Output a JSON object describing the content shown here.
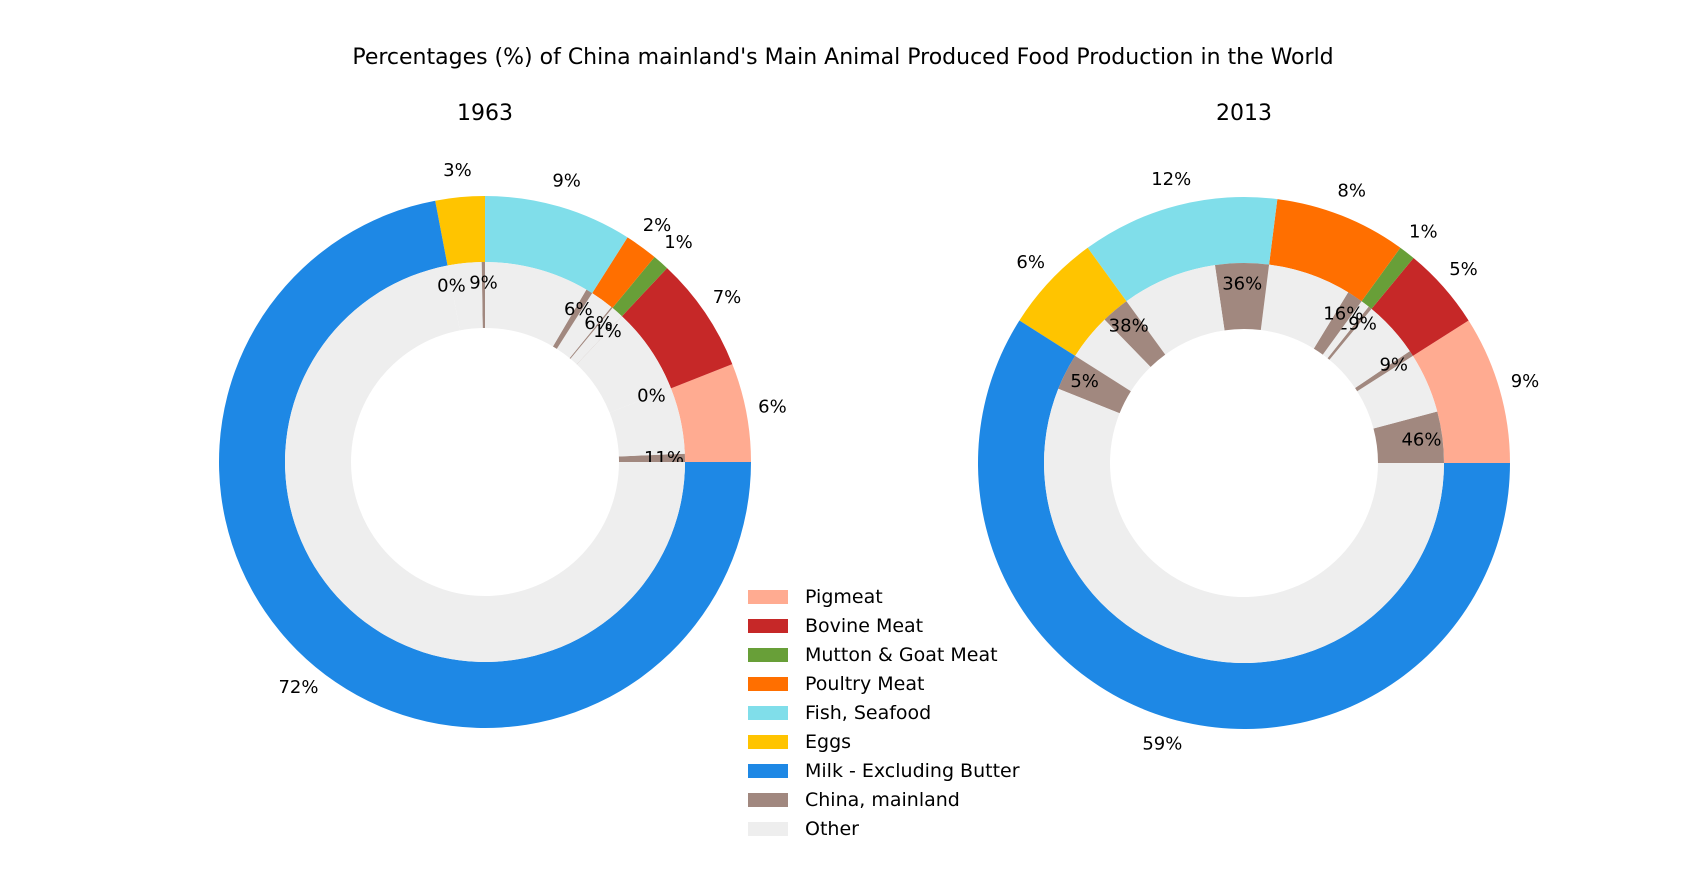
{
  "chart_data": {
    "type": "pie",
    "title": "Percentages (%) of China mainland's Main Animal Produced Food Production in the World",
    "categories": [
      "Pigmeat",
      "Bovine Meat",
      "Mutton & Goat Meat",
      "Poultry Meat",
      "Fish, Seafood",
      "Eggs",
      "Milk - Excluding Butter"
    ],
    "legend": {
      "placement": "center-bottom",
      "entries": [
        {
          "label": "Pigmeat",
          "color": "#FFAB91"
        },
        {
          "label": "Bovine Meat",
          "color": "#C62828"
        },
        {
          "label": "Mutton & Goat Meat",
          "color": "#689F38"
        },
        {
          "label": "Poultry Meat",
          "color": "#FF6F00"
        },
        {
          "label": "Fish, Seafood",
          "color": "#80DEEA"
        },
        {
          "label": "Eggs",
          "color": "#FFC400"
        },
        {
          "label": "Milk - Excluding Butter",
          "color": "#1E88E5"
        },
        {
          "label": "China, mainland",
          "color": "#A1887F"
        },
        {
          "label": "Other",
          "color": "#EEEEEE"
        }
      ]
    },
    "charts": [
      {
        "subtitle": "1963",
        "outer": {
          "values": [
            6,
            7,
            1,
            2,
            9,
            3,
            72
          ],
          "labels": [
            "6%",
            "7%",
            "1%",
            "2%",
            "9%",
            "3%",
            "72%"
          ]
        },
        "inner": {
          "china_share": [
            11,
            0,
            1,
            6,
            6,
            9,
            0
          ],
          "labels": [
            "11%",
            "0%",
            "1%",
            "6%",
            "6%",
            "9%",
            "0%"
          ]
        }
      },
      {
        "subtitle": "2013",
        "outer": {
          "values": [
            9,
            5,
            1,
            8,
            12,
            6,
            59
          ],
          "labels": [
            "9%",
            "5%",
            "1%",
            "8%",
            "12%",
            "6%",
            "59%"
          ]
        },
        "inner": {
          "china_share": [
            46,
            9,
            29,
            16,
            36,
            38,
            5
          ],
          "labels": [
            "46%",
            "9%",
            "29%",
            "16%",
            "36%",
            "38%",
            "5%"
          ]
        }
      }
    ]
  }
}
